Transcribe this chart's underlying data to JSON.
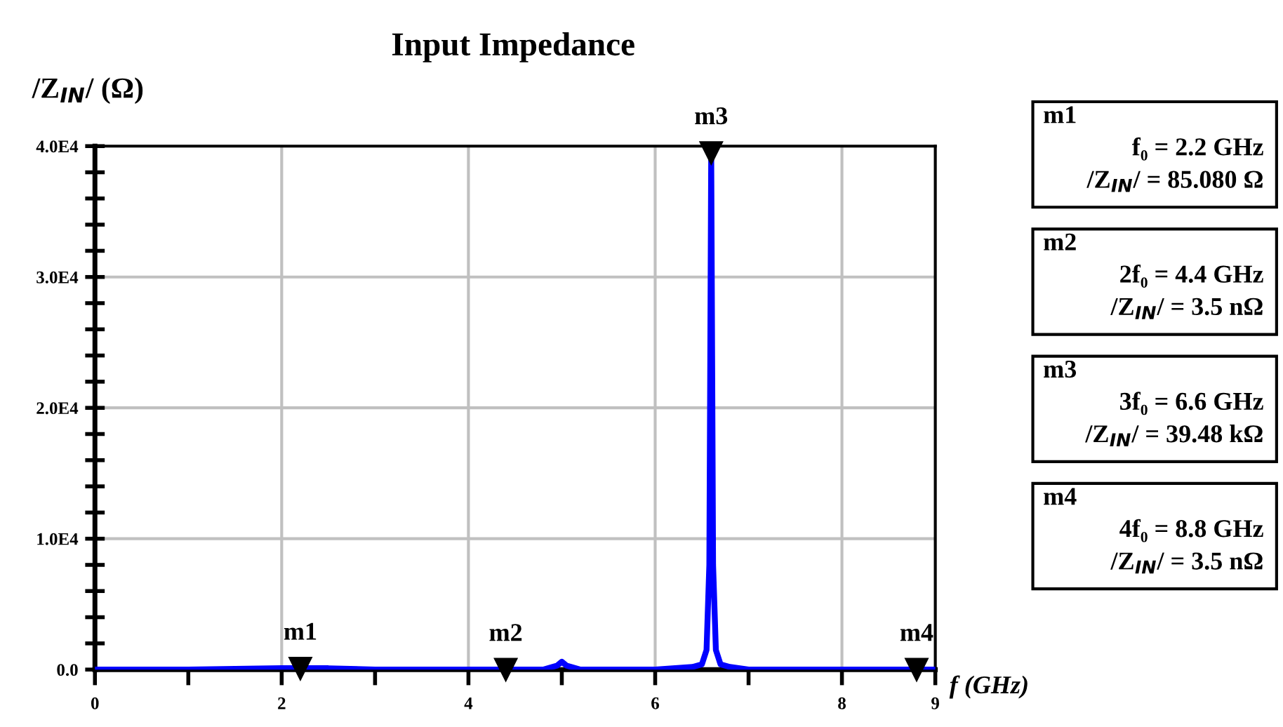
{
  "chart_data": {
    "type": "line",
    "title": "Input Impedance",
    "xlabel": "f (GHz)",
    "ylabel": "/Z$_{IN}$/ (Ω)",
    "x": [
      0,
      1,
      2,
      2.2,
      2.5,
      3,
      4,
      4.4,
      4.8,
      4.95,
      5.0,
      5.05,
      5.2,
      6,
      6.4,
      6.5,
      6.55,
      6.58,
      6.6,
      6.62,
      6.65,
      6.7,
      6.8,
      7,
      8,
      8.8,
      9
    ],
    "series": [
      {
        "color": "#0000ff",
        "values": [
          0,
          0,
          100,
          100,
          100,
          0,
          0,
          0,
          0,
          300,
          600,
          300,
          0,
          0,
          200,
          400,
          1500,
          8000,
          39480,
          8000,
          1500,
          400,
          200,
          0,
          0,
          0,
          0
        ]
      }
    ],
    "xlim": [
      0,
      9
    ],
    "xticks": [
      0,
      {
        "value": 1,
        "label": null
      },
      2,
      {
        "value": 3,
        "label": null
      },
      4,
      {
        "value": 5,
        "label": null
      },
      6,
      {
        "value": 7,
        "label": null
      },
      8,
      9
    ],
    "ylim": [
      0,
      40000
    ],
    "yticks": [
      {
        "value": 0,
        "label": "0.0"
      },
      {
        "value": 2000,
        "label": null
      },
      {
        "value": 4000,
        "label": null
      },
      {
        "value": 6000,
        "label": null
      },
      {
        "value": 8000,
        "label": null
      },
      {
        "value": 10000,
        "label": "1.0E4"
      },
      {
        "value": 12000,
        "label": null
      },
      {
        "value": 14000,
        "label": null
      },
      {
        "value": 16000,
        "label": null
      },
      {
        "value": 18000,
        "label": null
      },
      {
        "value": 20000,
        "label": "2.0E4"
      },
      {
        "value": 22000,
        "label": null
      },
      {
        "value": 24000,
        "label": null
      },
      {
        "value": 26000,
        "label": null
      },
      {
        "value": 28000,
        "label": null
      },
      {
        "value": 30000,
        "label": "3.0E4"
      },
      {
        "value": 32000,
        "label": null
      },
      {
        "value": 34000,
        "label": null
      },
      {
        "value": 36000,
        "label": null
      },
      {
        "value": 38000,
        "label": null
      },
      {
        "value": 40000,
        "label": "4.0E4"
      }
    ],
    "grid": true,
    "line_style": "solid",
    "marker": "none",
    "legend": false,
    "annotations": [
      {
        "text": "m1",
        "x": 2.2,
        "y": 85.08
      },
      {
        "text": "m2",
        "x": 4.4,
        "y": 0
      },
      {
        "text": "m3",
        "x": 6.6,
        "y": 39480
      },
      {
        "text": "m4",
        "x": 8.8,
        "y": 0
      },
      "m1\nf₀ = 2.2 GHz\n/Z$_{IN}$/ = 85.080 Ω",
      "m2\n2f₀ = 4.4 GHz\n/Z$_{IN}$/ = 3.5 nΩ",
      "m3\n3f₀ = 6.6 GHz\n/Z$_{IN}$/ = 39.48 kΩ",
      "m4\n4f₀ = 8.8 GHz\n/Z$_{IN}$/ = 3.5 nΩ"
    ]
  }
}
